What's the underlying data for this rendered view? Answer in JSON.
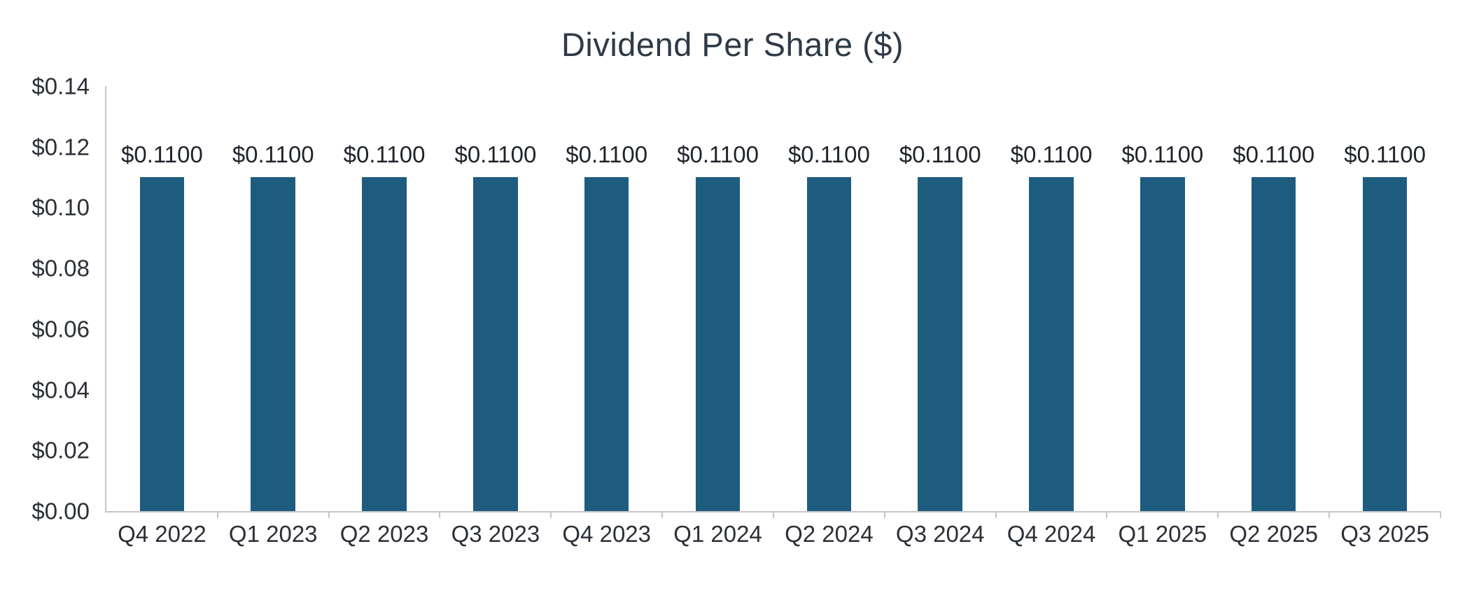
{
  "chart_data": {
    "type": "bar",
    "title": "Dividend Per Share ($)",
    "categories": [
      "Q4 2022",
      "Q1 2023",
      "Q2 2023",
      "Q3 2023",
      "Q4 2023",
      "Q1 2024",
      "Q2 2024",
      "Q3 2024",
      "Q4 2024",
      "Q1 2025",
      "Q2 2025",
      "Q3 2025"
    ],
    "values": [
      0.11,
      0.11,
      0.11,
      0.11,
      0.11,
      0.11,
      0.11,
      0.11,
      0.11,
      0.11,
      0.11,
      0.11
    ],
    "bar_labels": [
      "$0.1100",
      "$0.1100",
      "$0.1100",
      "$0.1100",
      "$0.1100",
      "$0.1100",
      "$0.1100",
      "$0.1100",
      "$0.1100",
      "$0.1100",
      "$0.1100",
      "$0.1100"
    ],
    "xlabel": "",
    "ylabel": "",
    "ylim": [
      0,
      0.14
    ],
    "y_ticks": [
      0,
      0.02,
      0.04,
      0.06,
      0.08,
      0.1,
      0.12,
      0.14
    ],
    "y_tick_labels": [
      "$0.00",
      "$0.02",
      "$0.04",
      "$0.06",
      "$0.08",
      "$0.10",
      "$0.12",
      "$0.14"
    ],
    "grid": false,
    "legend_position": "none",
    "colors": {
      "bar": "#1e5c7f",
      "title": "#2e3a46",
      "axis_line": "#c6c6c6",
      "tick_label": "#2b2f36",
      "bar_label": "#1f242b",
      "background": "#ffffff"
    }
  }
}
